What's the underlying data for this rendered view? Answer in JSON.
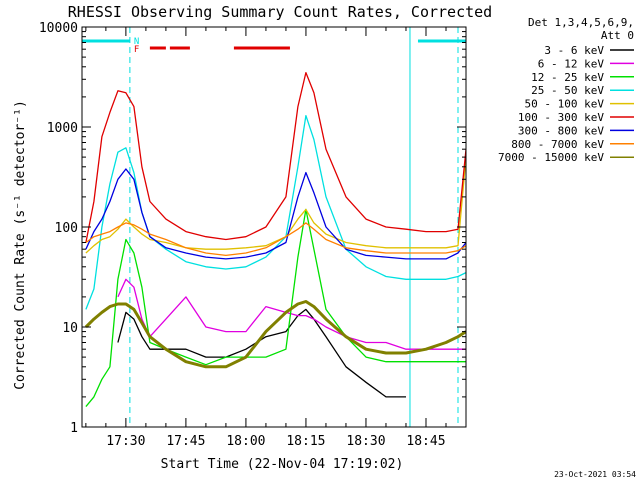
{
  "chart_data": {
    "type": "line",
    "title": "RHESSI Observing Summary Count Rates, Corrected",
    "xlabel": "Start Time (22-Nov-04 17:19:02)",
    "ylabel": "Corrected Count Rate (s⁻¹ detector⁻¹)",
    "y_scale": "log",
    "ylim": [
      1,
      10000
    ],
    "xlim": [
      "17:19:02",
      "18:55:00"
    ],
    "x_ticks": [
      "17:30",
      "17:45",
      "18:00",
      "18:15",
      "18:30",
      "18:45"
    ],
    "y_ticks": [
      "1",
      "10",
      "100",
      "1000",
      "10000"
    ],
    "legend_header": [
      "Det 1,3,4,5,6,9,",
      "Att 0"
    ],
    "legend_position": "right",
    "footer": "23-Oct-2021 03:54",
    "flags": {
      "N_label": "N",
      "F_label": "F",
      "night": [
        [
          "17:19",
          "17:31"
        ],
        [
          "18:43",
          "18:55"
        ]
      ],
      "flare": [
        [
          "17:36",
          "17:40"
        ],
        [
          "17:41",
          "17:46"
        ],
        [
          "17:57",
          "18:11"
        ]
      ]
    },
    "markers": [
      "17:31",
      "18:41",
      "18:53"
    ],
    "times": [
      "17:20",
      "17:22",
      "17:24",
      "17:26",
      "17:28",
      "17:30",
      "17:32",
      "17:34",
      "17:36",
      "17:40",
      "17:45",
      "17:50",
      "17:55",
      "18:00",
      "18:05",
      "18:10",
      "18:13",
      "18:15",
      "18:17",
      "18:20",
      "18:25",
      "18:30",
      "18:35",
      "18:40",
      "18:45",
      "18:50",
      "18:53",
      "18:55"
    ],
    "series": [
      {
        "name": "3 - 6 keV",
        "color": "#000000",
        "values": [
          null,
          null,
          null,
          null,
          7,
          14,
          12,
          8,
          6,
          6,
          6,
          5,
          5,
          6,
          8,
          9,
          13,
          15,
          12,
          8,
          4,
          2.8,
          2,
          2,
          null,
          null,
          null,
          null
        ]
      },
      {
        "name": "6 - 12 keV",
        "color": "#e000e0",
        "values": [
          null,
          null,
          null,
          null,
          20,
          30,
          25,
          12,
          8,
          12,
          20,
          10,
          9,
          9,
          16,
          14,
          13,
          13,
          12,
          10,
          8,
          7,
          7,
          6,
          6,
          6,
          6,
          6
        ]
      },
      {
        "name": "12 - 25 keV",
        "color": "#00e000",
        "values": [
          1.6,
          2,
          3,
          4,
          30,
          75,
          55,
          25,
          7,
          6,
          5,
          4.2,
          5,
          5,
          5,
          6,
          50,
          150,
          60,
          15,
          8,
          5,
          4.5,
          4.5,
          4.5,
          4.5,
          4.5,
          4.5
        ]
      },
      {
        "name": "25 - 50 keV",
        "color": "#00e0e0",
        "values": [
          15,
          24,
          100,
          270,
          560,
          620,
          350,
          140,
          80,
          60,
          45,
          40,
          38,
          40,
          50,
          80,
          400,
          1300,
          750,
          200,
          60,
          40,
          32,
          30,
          30,
          30,
          32,
          35
        ]
      },
      {
        "name": "50 - 100 keV",
        "color": "#e0c000",
        "values": [
          55,
          65,
          75,
          80,
          95,
          120,
          100,
          85,
          75,
          70,
          62,
          60,
          60,
          62,
          65,
          80,
          120,
          150,
          110,
          85,
          70,
          65,
          62,
          62,
          62,
          62,
          65,
          500
        ]
      },
      {
        "name": "100 - 300 keV",
        "color": "#e00000",
        "values": [
          70,
          180,
          800,
          1400,
          2300,
          2200,
          1600,
          400,
          180,
          120,
          90,
          80,
          75,
          80,
          100,
          200,
          1600,
          3500,
          2200,
          600,
          200,
          120,
          100,
          95,
          90,
          90,
          95,
          600
        ]
      },
      {
        "name": "300 - 800 keV",
        "color": "#0000e0",
        "values": [
          60,
          90,
          120,
          180,
          300,
          380,
          300,
          140,
          80,
          62,
          55,
          50,
          48,
          50,
          55,
          70,
          200,
          350,
          220,
          100,
          60,
          52,
          50,
          48,
          48,
          48,
          55,
          70
        ]
      },
      {
        "name": "800 - 7000 keV",
        "color": "#ff8000",
        "values": [
          70,
          80,
          85,
          90,
          100,
          110,
          105,
          95,
          85,
          75,
          62,
          55,
          52,
          55,
          62,
          80,
          95,
          110,
          95,
          75,
          62,
          58,
          55,
          55,
          55,
          55,
          58,
          65
        ]
      },
      {
        "name": "7000 - 15000 keV",
        "color": "#808000",
        "values": [
          10,
          12,
          14,
          16,
          17,
          17,
          15,
          11,
          8,
          6,
          4.5,
          4,
          4,
          5,
          9,
          14,
          17,
          18,
          16,
          12,
          8,
          6,
          5.5,
          5.5,
          6,
          7,
          8,
          9
        ]
      }
    ]
  }
}
